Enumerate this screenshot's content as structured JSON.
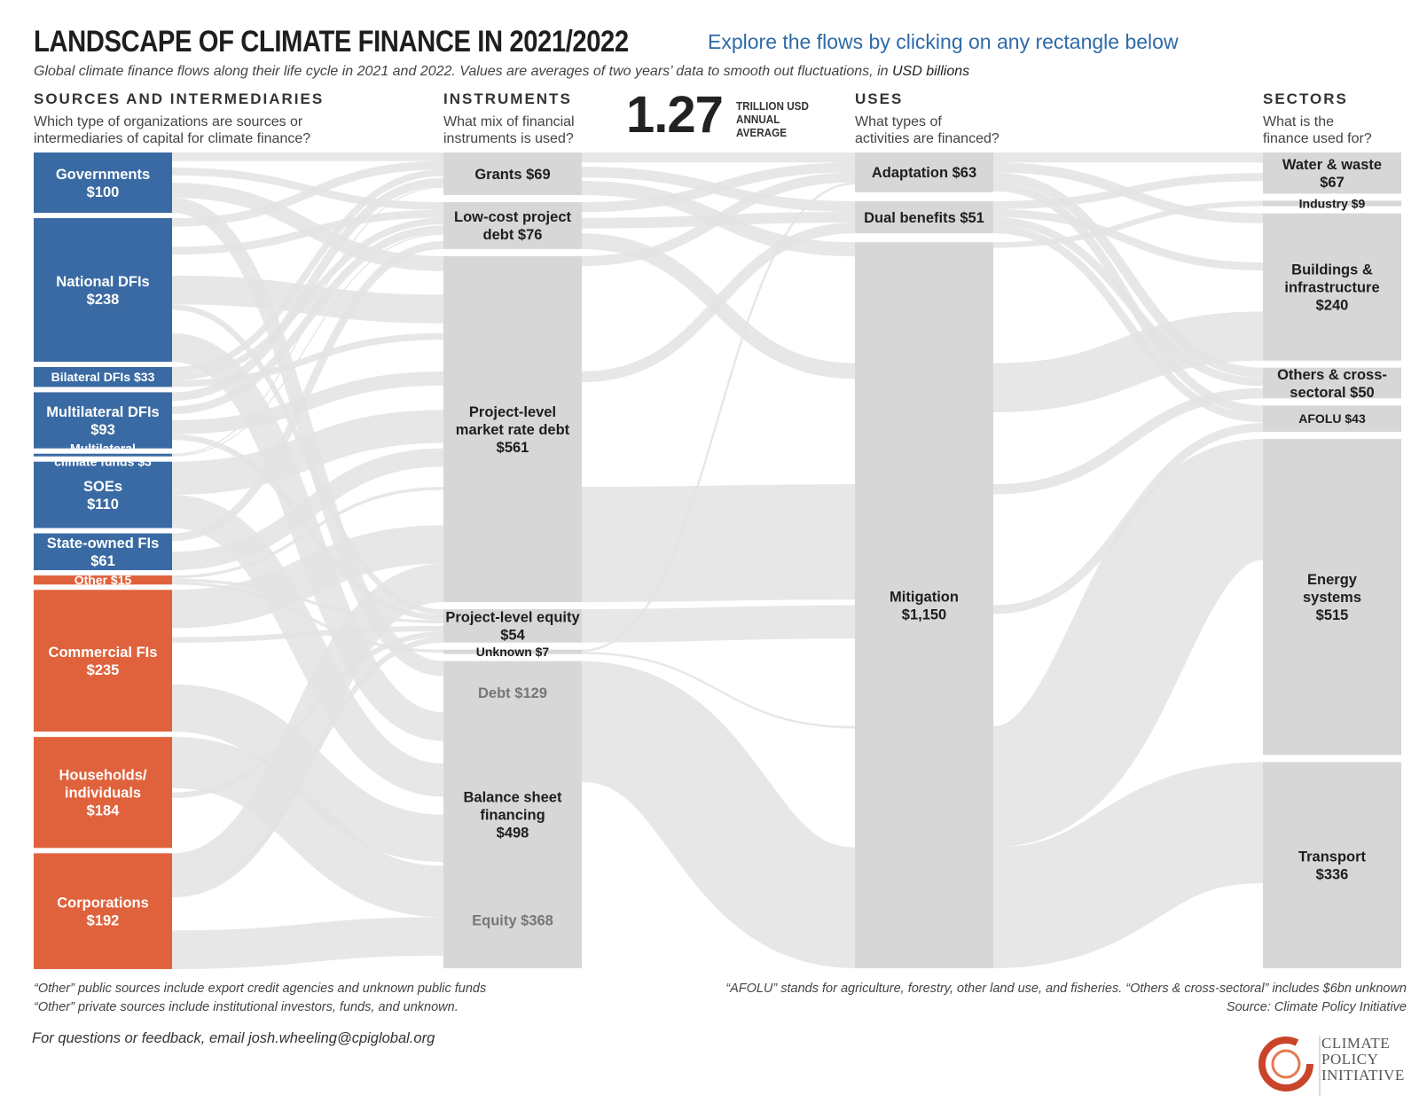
{
  "header": {
    "title": "LANDSCAPE OF CLIMATE FINANCE IN 2021/2022",
    "explore_link": "Explore the flows by clicking on any rectangle below",
    "subtitle": "Global climate finance flows along their life cycle in 2021 and 2022. Values are averages of two years’ data to smooth out fluctuations, in",
    "subtitle_unit": "USD billions"
  },
  "columns": [
    {
      "heading": "SOURCES AND INTERMEDIARIES",
      "question": "Which type of organizations are sources or\nintermediaries of capital for climate finance?"
    },
    {
      "heading": "INSTRUMENTS",
      "question": "What mix of financial\ninstruments is used?"
    },
    {
      "heading": "USES",
      "question": "What types of\nactivities are financed?"
    },
    {
      "heading": "SECTORS",
      "question": "What is the\nfinance used for?"
    }
  ],
  "total": {
    "value": "1.27",
    "label": "TRILLION USD\nANNUAL\nAVERAGE"
  },
  "colors": {
    "public": "#3a6aa3",
    "private": "#e0623c",
    "node_gray": "#d7d7d7",
    "flow_gray": "#e3e3e3"
  },
  "chart_data": {
    "type": "sankey",
    "unit": "USD billions",
    "nodes": [
      {
        "id": "gov",
        "column": 0,
        "label": "Governments\n$100",
        "value": 100,
        "group": "public"
      },
      {
        "id": "ndfi",
        "column": 0,
        "label": "National DFIs\n$238",
        "value": 238,
        "group": "public"
      },
      {
        "id": "bdfi",
        "column": 0,
        "label": "Bilateral DFIs $33",
        "value": 33,
        "group": "public"
      },
      {
        "id": "mdfi",
        "column": 0,
        "label": "Multilateral DFIs\n$93",
        "value": 93,
        "group": "public"
      },
      {
        "id": "mcf",
        "column": 0,
        "label": "Multilateral\nclimate funds $3",
        "value": 3,
        "group": "public"
      },
      {
        "id": "soe",
        "column": 0,
        "label": "SOEs\n$110",
        "value": 110,
        "group": "public"
      },
      {
        "id": "sofi",
        "column": 0,
        "label": "State-owned FIs\n$61",
        "value": 61,
        "group": "public"
      },
      {
        "id": "oth",
        "column": 0,
        "label": "Other $15",
        "value": 15,
        "group": "private"
      },
      {
        "id": "cfi",
        "column": 0,
        "label": "Commercial FIs\n$235",
        "value": 235,
        "group": "private"
      },
      {
        "id": "hh",
        "column": 0,
        "label": "Households/\nindividuals\n$184",
        "value": 184,
        "group": "private"
      },
      {
        "id": "corp",
        "column": 0,
        "label": "Corporations\n$192",
        "value": 192,
        "group": "private"
      },
      {
        "id": "grants",
        "column": 1,
        "label": "Grants $69",
        "value": 69
      },
      {
        "id": "lcd",
        "column": 1,
        "label": "Low-cost project\ndebt $76",
        "value": 76
      },
      {
        "id": "pmrd",
        "column": 1,
        "label": "Project-level\nmarket rate debt\n$561",
        "value": 561
      },
      {
        "id": "peq",
        "column": 1,
        "label": "Project-level equity\n$54",
        "value": 54
      },
      {
        "id": "unk",
        "column": 1,
        "label": "Unknown $7",
        "value": 7
      },
      {
        "id": "bsf",
        "column": 1,
        "label": "Balance sheet\nfinancing\n$498",
        "value": 498,
        "sub": [
          "Debt $129",
          "Equity $368"
        ]
      },
      {
        "id": "adapt",
        "column": 2,
        "label": "Adaptation $63",
        "value": 63
      },
      {
        "id": "dual",
        "column": 2,
        "label": "Dual benefits $51",
        "value": 51
      },
      {
        "id": "mitig",
        "column": 2,
        "label": "Mitigation\n$1,150",
        "value": 1150
      },
      {
        "id": "water",
        "column": 3,
        "label": "Water & waste\n$67",
        "value": 67
      },
      {
        "id": "ind",
        "column": 3,
        "label": "Industry $9",
        "value": 9
      },
      {
        "id": "build",
        "column": 3,
        "label": "Buildings &\ninfrastructure\n$240",
        "value": 240
      },
      {
        "id": "others",
        "column": 3,
        "label": "Others & cross-\nsectoral $50",
        "value": 50
      },
      {
        "id": "afolu",
        "column": 3,
        "label": "AFOLU $43",
        "value": 43
      },
      {
        "id": "energy",
        "column": 3,
        "label": "Energy\nsystems\n$515",
        "value": 515
      },
      {
        "id": "transport",
        "column": 3,
        "label": "Transport\n$336",
        "value": 336
      }
    ],
    "links": [
      [
        "gov",
        "grants"
      ],
      [
        "gov",
        "lcd"
      ],
      [
        "gov",
        "pmrd"
      ],
      [
        "gov",
        "bsf"
      ],
      [
        "ndfi",
        "grants"
      ],
      [
        "ndfi",
        "lcd"
      ],
      [
        "ndfi",
        "pmrd"
      ],
      [
        "ndfi",
        "peq"
      ],
      [
        "ndfi",
        "bsf"
      ],
      [
        "bdfi",
        "grants"
      ],
      [
        "bdfi",
        "lcd"
      ],
      [
        "bdfi",
        "pmrd"
      ],
      [
        "mdfi",
        "grants"
      ],
      [
        "mdfi",
        "lcd"
      ],
      [
        "mdfi",
        "pmrd"
      ],
      [
        "mdfi",
        "peq"
      ],
      [
        "mcf",
        "grants"
      ],
      [
        "mcf",
        "lcd"
      ],
      [
        "soe",
        "pmrd"
      ],
      [
        "soe",
        "bsf"
      ],
      [
        "sofi",
        "lcd"
      ],
      [
        "sofi",
        "pmrd"
      ],
      [
        "oth",
        "pmrd"
      ],
      [
        "oth",
        "peq"
      ],
      [
        "oth",
        "unk"
      ],
      [
        "cfi",
        "pmrd"
      ],
      [
        "cfi",
        "peq"
      ],
      [
        "cfi",
        "bsf"
      ],
      [
        "hh",
        "bsf"
      ],
      [
        "hh",
        "peq"
      ],
      [
        "corp",
        "pmrd"
      ],
      [
        "corp",
        "peq"
      ],
      [
        "corp",
        "bsf"
      ],
      [
        "grants",
        "adapt"
      ],
      [
        "grants",
        "dual"
      ],
      [
        "grants",
        "mitig"
      ],
      [
        "lcd",
        "adapt"
      ],
      [
        "lcd",
        "dual"
      ],
      [
        "lcd",
        "mitig"
      ],
      [
        "pmrd",
        "adapt"
      ],
      [
        "pmrd",
        "dual"
      ],
      [
        "pmrd",
        "mitig"
      ],
      [
        "peq",
        "mitig"
      ],
      [
        "unk",
        "adapt"
      ],
      [
        "unk",
        "mitig"
      ],
      [
        "bsf",
        "mitig"
      ],
      [
        "adapt",
        "water"
      ],
      [
        "adapt",
        "build"
      ],
      [
        "adapt",
        "others"
      ],
      [
        "adapt",
        "afolu"
      ],
      [
        "dual",
        "water"
      ],
      [
        "dual",
        "build"
      ],
      [
        "dual",
        "others"
      ],
      [
        "dual",
        "afolu"
      ],
      [
        "mitig",
        "ind"
      ],
      [
        "mitig",
        "build"
      ],
      [
        "mitig",
        "others"
      ],
      [
        "mitig",
        "afolu"
      ],
      [
        "mitig",
        "energy"
      ],
      [
        "mitig",
        "transport"
      ]
    ]
  },
  "footnotes": {
    "left_1": "“Other” public sources include export credit agencies and unknown public funds",
    "left_2": "“Other” private sources include institutional investors, funds, and unknown.",
    "right_1": "“AFOLU” stands for agriculture, forestry, other land use, and fisheries. “Others & cross-sectoral” includes $6bn unknown",
    "right_2": "Source: Climate Policy Initiative"
  },
  "feedback": "For questions or feedback, email josh.wheeling@cpiglobal.org",
  "logo": {
    "text": "CLIMATE\nPOLICY\nINITIATIVE",
    "icon": "cpi-ring-logo-icon"
  }
}
